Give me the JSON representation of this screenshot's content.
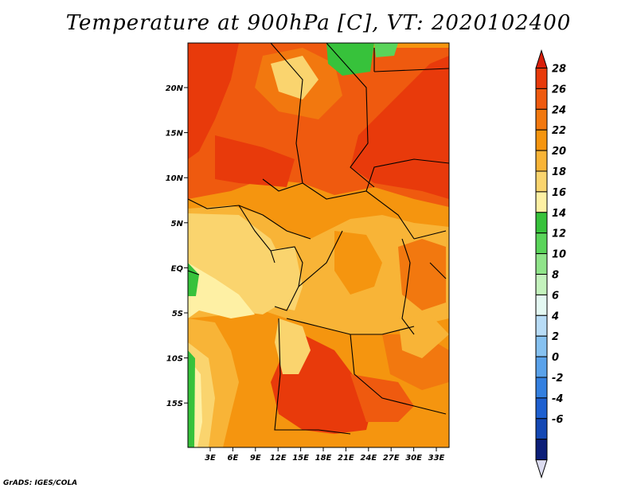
{
  "title": "Temperature at 900hPa [C], VT: 2020102400",
  "footer": "GrADS: IGES/COLA",
  "map": {
    "x_ticks": [
      "3E",
      "6E",
      "9E",
      "12E",
      "15E",
      "18E",
      "21E",
      "24E",
      "27E",
      "30E",
      "33E"
    ],
    "y_ticks": [
      "20N",
      "15N",
      "10N",
      "5N",
      "EQ",
      "5S",
      "10S",
      "15S"
    ]
  },
  "colorbar": {
    "labels": [
      "28",
      "26",
      "24",
      "22",
      "20",
      "18",
      "16",
      "14",
      "12",
      "10",
      "8",
      "6",
      "4",
      "2",
      "0",
      "-2",
      "-4",
      "-6"
    ],
    "colors": [
      "#e83a0b",
      "#ef5a0f",
      "#f2780f",
      "#f5950f",
      "#f8b437",
      "#fad46e",
      "#fef0a4",
      "#37c23b",
      "#5ad45a",
      "#90e48a",
      "#c4f2bd",
      "#e4f8f2",
      "#b8dcf6",
      "#86c1f0",
      "#5aa2ea",
      "#3480e0",
      "#1e60d0",
      "#1448b4",
      "#0c1e78"
    ],
    "top_color": "#d81e0a",
    "bottom_color": "#dcdcf0"
  }
}
